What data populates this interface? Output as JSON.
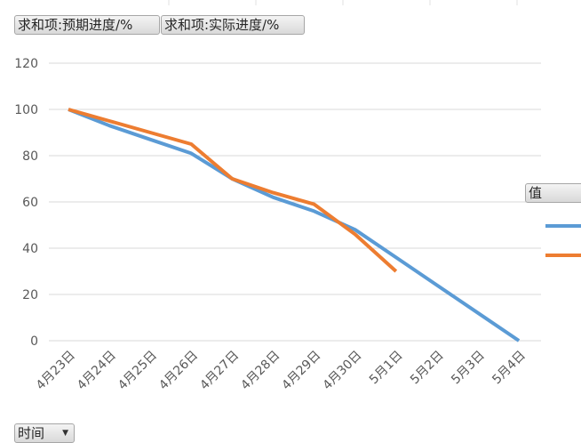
{
  "field_buttons": {
    "value_field_1": "求和项:预期进度/%",
    "value_field_2": "求和项:实际进度/%",
    "legend_title": "值",
    "axis_field": "时间",
    "axis_dropdown_icon": "dropdown-arrow-icon"
  },
  "colors": {
    "series_1": "#5b9bd5",
    "series_2": "#ed7d31",
    "grid": "#d9d9d9",
    "tick_label": "#595959"
  },
  "chart_data": {
    "type": "line",
    "categories": [
      "4月23日",
      "4月24日",
      "4月25日",
      "4月26日",
      "4月27日",
      "4月28日",
      "4月29日",
      "4月30日",
      "5月1日",
      "5月2日",
      "5月3日",
      "5月4日"
    ],
    "series": [
      {
        "name": "求和项:预期进度/%",
        "values": [
          100,
          93,
          87,
          81,
          70,
          62,
          56,
          48,
          36,
          24,
          12,
          0
        ]
      },
      {
        "name": "求和项:实际进度/%",
        "values": [
          100,
          95,
          90,
          85,
          70,
          64,
          59,
          46,
          30,
          null,
          null,
          null
        ]
      }
    ],
    "yticks": [
      0,
      20,
      40,
      60,
      80,
      100,
      120
    ],
    "ylim": [
      0,
      120
    ],
    "grid": true,
    "legend_position": "right"
  }
}
